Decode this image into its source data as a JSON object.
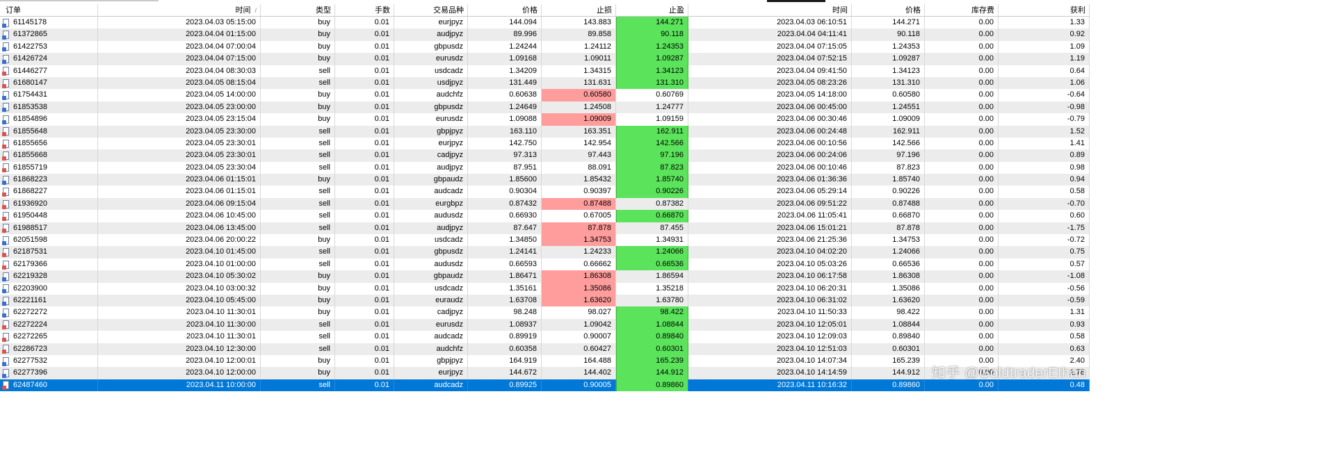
{
  "headers": [
    "订单",
    "时间",
    "类型",
    "手数",
    "交易品种",
    "价格",
    "止损",
    "止盈",
    "时间",
    "价格",
    "库存费",
    "获利"
  ],
  "sort_indicator": "/",
  "rows": [
    {
      "order": "61145178",
      "open_time": "2023.04.03 05:15:00",
      "type": "buy",
      "volume": "0.01",
      "symbol": "eurjpyz",
      "open_price": "144.094",
      "sl": "143.883",
      "tp": "144.271",
      "close_time": "2023.04.03 06:10:51",
      "close_price": "144.271",
      "swap": "0.00",
      "profit": "1.33",
      "hit": "tp"
    },
    {
      "order": "61372865",
      "open_time": "2023.04.04 01:15:00",
      "type": "buy",
      "volume": "0.01",
      "symbol": "audjpyz",
      "open_price": "89.996",
      "sl": "89.858",
      "tp": "90.118",
      "close_time": "2023.04.04 04:11:41",
      "close_price": "90.118",
      "swap": "0.00",
      "profit": "0.92",
      "hit": "tp"
    },
    {
      "order": "61422753",
      "open_time": "2023.04.04 07:00:04",
      "type": "buy",
      "volume": "0.01",
      "symbol": "gbpusdz",
      "open_price": "1.24244",
      "sl": "1.24112",
      "tp": "1.24353",
      "close_time": "2023.04.04 07:15:05",
      "close_price": "1.24353",
      "swap": "0.00",
      "profit": "1.09",
      "hit": "tp"
    },
    {
      "order": "61426724",
      "open_time": "2023.04.04 07:15:00",
      "type": "buy",
      "volume": "0.01",
      "symbol": "eurusdz",
      "open_price": "1.09168",
      "sl": "1.09011",
      "tp": "1.09287",
      "close_time": "2023.04.04 07:52:15",
      "close_price": "1.09287",
      "swap": "0.00",
      "profit": "1.19",
      "hit": "tp"
    },
    {
      "order": "61446277",
      "open_time": "2023.04.04 08:30:03",
      "type": "sell",
      "volume": "0.01",
      "symbol": "usdcadz",
      "open_price": "1.34209",
      "sl": "1.34315",
      "tp": "1.34123",
      "close_time": "2023.04.04 09:41:50",
      "close_price": "1.34123",
      "swap": "0.00",
      "profit": "0.64",
      "hit": "tp"
    },
    {
      "order": "61680147",
      "open_time": "2023.04.05 08:15:04",
      "type": "sell",
      "volume": "0.01",
      "symbol": "usdjpyz",
      "open_price": "131.449",
      "sl": "131.631",
      "tp": "131.310",
      "close_time": "2023.04.05 08:23:26",
      "close_price": "131.310",
      "swap": "0.00",
      "profit": "1.06",
      "hit": "tp"
    },
    {
      "order": "61754431",
      "open_time": "2023.04.05 14:00:00",
      "type": "buy",
      "volume": "0.01",
      "symbol": "audchfz",
      "open_price": "0.60638",
      "sl": "0.60580",
      "tp": "0.60769",
      "close_time": "2023.04.05 14:18:00",
      "close_price": "0.60580",
      "swap": "0.00",
      "profit": "-0.64",
      "hit": "sl"
    },
    {
      "order": "61853538",
      "open_time": "2023.04.05 23:00:00",
      "type": "buy",
      "volume": "0.01",
      "symbol": "gbpusdz",
      "open_price": "1.24649",
      "sl": "1.24508",
      "tp": "1.24777",
      "close_time": "2023.04.06 00:45:00",
      "close_price": "1.24551",
      "swap": "0.00",
      "profit": "-0.98",
      "hit": "none"
    },
    {
      "order": "61854896",
      "open_time": "2023.04.05 23:15:04",
      "type": "buy",
      "volume": "0.01",
      "symbol": "eurusdz",
      "open_price": "1.09088",
      "sl": "1.09009",
      "tp": "1.09159",
      "close_time": "2023.04.06 00:30:46",
      "close_price": "1.09009",
      "swap": "0.00",
      "profit": "-0.79",
      "hit": "sl"
    },
    {
      "order": "61855648",
      "open_time": "2023.04.05 23:30:00",
      "type": "sell",
      "volume": "0.01",
      "symbol": "gbpjpyz",
      "open_price": "163.110",
      "sl": "163.351",
      "tp": "162.911",
      "close_time": "2023.04.06 00:24:48",
      "close_price": "162.911",
      "swap": "0.00",
      "profit": "1.52",
      "hit": "tp"
    },
    {
      "order": "61855656",
      "open_time": "2023.04.05 23:30:01",
      "type": "sell",
      "volume": "0.01",
      "symbol": "eurjpyz",
      "open_price": "142.750",
      "sl": "142.954",
      "tp": "142.566",
      "close_time": "2023.04.06 00:10:56",
      "close_price": "142.566",
      "swap": "0.00",
      "profit": "1.41",
      "hit": "tp"
    },
    {
      "order": "61855668",
      "open_time": "2023.04.05 23:30:01",
      "type": "sell",
      "volume": "0.01",
      "symbol": "cadjpyz",
      "open_price": "97.313",
      "sl": "97.443",
      "tp": "97.196",
      "close_time": "2023.04.06 00:24:06",
      "close_price": "97.196",
      "swap": "0.00",
      "profit": "0.89",
      "hit": "tp"
    },
    {
      "order": "61855719",
      "open_time": "2023.04.05 23:30:04",
      "type": "sell",
      "volume": "0.01",
      "symbol": "audjpyz",
      "open_price": "87.951",
      "sl": "88.091",
      "tp": "87.823",
      "close_time": "2023.04.06 00:10:46",
      "close_price": "87.823",
      "swap": "0.00",
      "profit": "0.98",
      "hit": "tp"
    },
    {
      "order": "61868223",
      "open_time": "2023.04.06 01:15:01",
      "type": "buy",
      "volume": "0.01",
      "symbol": "gbpaudz",
      "open_price": "1.85600",
      "sl": "1.85432",
      "tp": "1.85740",
      "close_time": "2023.04.06 01:36:36",
      "close_price": "1.85740",
      "swap": "0.00",
      "profit": "0.94",
      "hit": "tp"
    },
    {
      "order": "61868227",
      "open_time": "2023.04.06 01:15:01",
      "type": "sell",
      "volume": "0.01",
      "symbol": "audcadz",
      "open_price": "0.90304",
      "sl": "0.90397",
      "tp": "0.90226",
      "close_time": "2023.04.06 05:29:14",
      "close_price": "0.90226",
      "swap": "0.00",
      "profit": "0.58",
      "hit": "tp"
    },
    {
      "order": "61936920",
      "open_time": "2023.04.06 09:15:04",
      "type": "sell",
      "volume": "0.01",
      "symbol": "eurgbpz",
      "open_price": "0.87432",
      "sl": "0.87488",
      "tp": "0.87382",
      "close_time": "2023.04.06 09:51:22",
      "close_price": "0.87488",
      "swap": "0.00",
      "profit": "-0.70",
      "hit": "sl"
    },
    {
      "order": "61950448",
      "open_time": "2023.04.06 10:45:00",
      "type": "sell",
      "volume": "0.01",
      "symbol": "audusdz",
      "open_price": "0.66930",
      "sl": "0.67005",
      "tp": "0.66870",
      "close_time": "2023.04.06 11:05:41",
      "close_price": "0.66870",
      "swap": "0.00",
      "profit": "0.60",
      "hit": "tp"
    },
    {
      "order": "61988517",
      "open_time": "2023.04.06 13:45:00",
      "type": "sell",
      "volume": "0.01",
      "symbol": "audjpyz",
      "open_price": "87.647",
      "sl": "87.878",
      "tp": "87.455",
      "close_time": "2023.04.06 15:01:21",
      "close_price": "87.878",
      "swap": "0.00",
      "profit": "-1.75",
      "hit": "sl"
    },
    {
      "order": "62051598",
      "open_time": "2023.04.06 20:00:22",
      "type": "buy",
      "volume": "0.01",
      "symbol": "usdcadz",
      "open_price": "1.34850",
      "sl": "1.34753",
      "tp": "1.34931",
      "close_time": "2023.04.06 21:25:36",
      "close_price": "1.34753",
      "swap": "0.00",
      "profit": "-0.72",
      "hit": "sl"
    },
    {
      "order": "62187531",
      "open_time": "2023.04.10 01:45:00",
      "type": "sell",
      "volume": "0.01",
      "symbol": "gbpusdz",
      "open_price": "1.24141",
      "sl": "1.24233",
      "tp": "1.24066",
      "close_time": "2023.04.10 04:02:20",
      "close_price": "1.24066",
      "swap": "0.00",
      "profit": "0.75",
      "hit": "tp"
    },
    {
      "order": "62179366",
      "open_time": "2023.04.10 01:00:00",
      "type": "sell",
      "volume": "0.01",
      "symbol": "audusdz",
      "open_price": "0.66593",
      "sl": "0.66662",
      "tp": "0.66536",
      "close_time": "2023.04.10 05:03:26",
      "close_price": "0.66536",
      "swap": "0.00",
      "profit": "0.57",
      "hit": "tp"
    },
    {
      "order": "62219328",
      "open_time": "2023.04.10 05:30:02",
      "type": "buy",
      "volume": "0.01",
      "symbol": "gbpaudz",
      "open_price": "1.86471",
      "sl": "1.86308",
      "tp": "1.86594",
      "close_time": "2023.04.10 06:17:58",
      "close_price": "1.86308",
      "swap": "0.00",
      "profit": "-1.08",
      "hit": "sl"
    },
    {
      "order": "62203900",
      "open_time": "2023.04.10 03:00:32",
      "type": "buy",
      "volume": "0.01",
      "symbol": "usdcadz",
      "open_price": "1.35161",
      "sl": "1.35086",
      "tp": "1.35218",
      "close_time": "2023.04.10 06:20:31",
      "close_price": "1.35086",
      "swap": "0.00",
      "profit": "-0.56",
      "hit": "sl"
    },
    {
      "order": "62221161",
      "open_time": "2023.04.10 05:45:00",
      "type": "buy",
      "volume": "0.01",
      "symbol": "euraudz",
      "open_price": "1.63708",
      "sl": "1.63620",
      "tp": "1.63780",
      "close_time": "2023.04.10 06:31:02",
      "close_price": "1.63620",
      "swap": "0.00",
      "profit": "-0.59",
      "hit": "sl"
    },
    {
      "order": "62272272",
      "open_time": "2023.04.10 11:30:01",
      "type": "buy",
      "volume": "0.01",
      "symbol": "cadjpyz",
      "open_price": "98.248",
      "sl": "98.027",
      "tp": "98.422",
      "close_time": "2023.04.10 11:50:33",
      "close_price": "98.422",
      "swap": "0.00",
      "profit": "1.31",
      "hit": "tp"
    },
    {
      "order": "62272224",
      "open_time": "2023.04.10 11:30:00",
      "type": "sell",
      "volume": "0.01",
      "symbol": "eurusdz",
      "open_price": "1.08937",
      "sl": "1.09042",
      "tp": "1.08844",
      "close_time": "2023.04.10 12:05:01",
      "close_price": "1.08844",
      "swap": "0.00",
      "profit": "0.93",
      "hit": "tp"
    },
    {
      "order": "62272265",
      "open_time": "2023.04.10 11:30:01",
      "type": "sell",
      "volume": "0.01",
      "symbol": "audcadz",
      "open_price": "0.89919",
      "sl": "0.90007",
      "tp": "0.89840",
      "close_time": "2023.04.10 12:09:03",
      "close_price": "0.89840",
      "swap": "0.00",
      "profit": "0.58",
      "hit": "tp"
    },
    {
      "order": "62286723",
      "open_time": "2023.04.10 12:30:00",
      "type": "sell",
      "volume": "0.01",
      "symbol": "audchfz",
      "open_price": "0.60358",
      "sl": "0.60427",
      "tp": "0.60301",
      "close_time": "2023.04.10 12:51:03",
      "close_price": "0.60301",
      "swap": "0.00",
      "profit": "0.63",
      "hit": "tp"
    },
    {
      "order": "62277532",
      "open_time": "2023.04.10 12:00:01",
      "type": "buy",
      "volume": "0.01",
      "symbol": "gbpjpyz",
      "open_price": "164.919",
      "sl": "164.488",
      "tp": "165.239",
      "close_time": "2023.04.10 14:07:34",
      "close_price": "165.239",
      "swap": "0.00",
      "profit": "2.40",
      "hit": "tp"
    },
    {
      "order": "62277396",
      "open_time": "2023.04.10 12:00:00",
      "type": "buy",
      "volume": "0.01",
      "symbol": "eurjpyz",
      "open_price": "144.672",
      "sl": "144.402",
      "tp": "144.912",
      "close_time": "2023.04.10 14:14:59",
      "close_price": "144.912",
      "swap": "0.00",
      "profit": "1.78",
      "hit": "tp"
    },
    {
      "order": "62487460",
      "open_time": "2023.04.11 10:00:00",
      "type": "sell",
      "volume": "0.01",
      "symbol": "audcadz",
      "open_price": "0.89925",
      "sl": "0.90005",
      "tp": "0.89860",
      "close_time": "2023.04.11 10:16:32",
      "close_price": "0.89860",
      "swap": "0.00",
      "profit": "0.48",
      "hit": "tp",
      "selected": true
    }
  ],
  "watermark": "知乎 @GoldtraderEthan",
  "colors": {
    "tp_hit": "#5be45b",
    "sl_hit": "#ff9c9c",
    "selected_row": "#0078d7",
    "alt_row": "#ececec"
  }
}
